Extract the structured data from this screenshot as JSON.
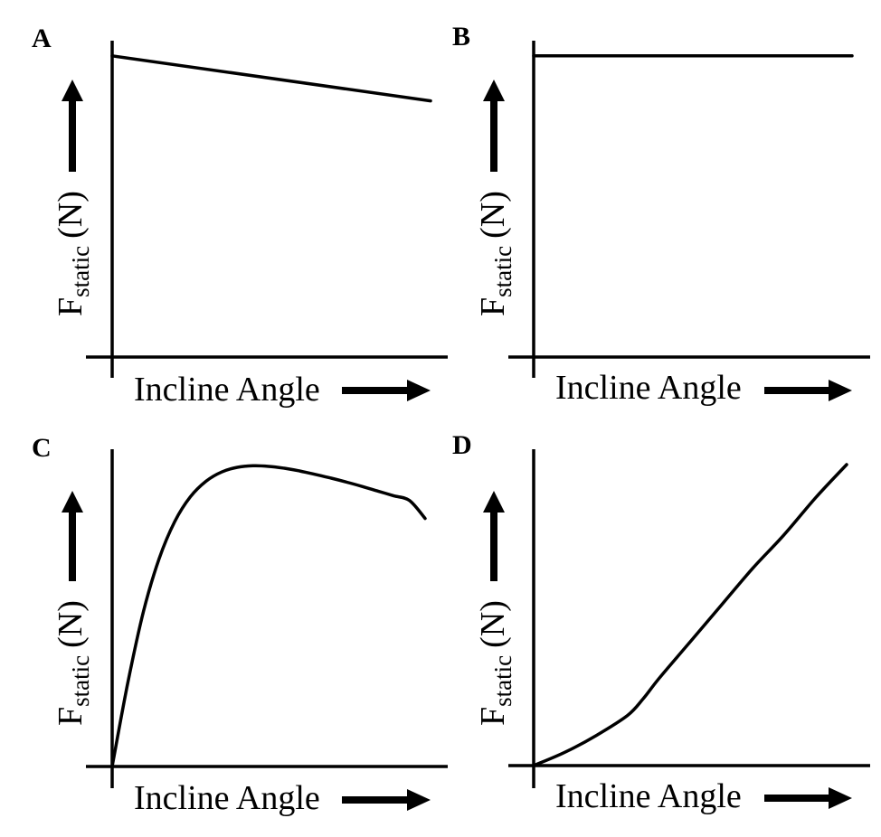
{
  "chart_data": [
    {
      "panel": "A",
      "type": "line",
      "xlabel": "Incline Angle",
      "ylabel": {
        "main": "F",
        "subscript": "static",
        "unit": "(N)"
      },
      "x": [
        0,
        1
      ],
      "y": [
        0.87,
        0.74
      ],
      "xlim": [
        0,
        1
      ],
      "ylim": [
        0,
        1
      ],
      "grid": false,
      "ticks": false
    },
    {
      "panel": "B",
      "type": "line",
      "xlabel": "Incline Angle",
      "ylabel": {
        "main": "F",
        "subscript": "static",
        "unit": "(N)"
      },
      "x": [
        0,
        1
      ],
      "y": [
        0.87,
        0.87
      ],
      "xlim": [
        0,
        1
      ],
      "ylim": [
        0,
        1
      ],
      "grid": false,
      "ticks": false
    },
    {
      "panel": "C",
      "type": "line",
      "xlabel": "Incline Angle",
      "ylabel": {
        "main": "F",
        "subscript": "static",
        "unit": "(N)"
      },
      "x": [
        0,
        0.05,
        0.1,
        0.15,
        0.2,
        0.25,
        0.3,
        0.35,
        0.4,
        0.45,
        0.5,
        0.55,
        0.6,
        0.65,
        0.7,
        0.75,
        0.8,
        0.85,
        0.9,
        0.95,
        1.0
      ],
      "y": [
        0,
        0.27,
        0.5,
        0.67,
        0.79,
        0.87,
        0.92,
        0.95,
        0.965,
        0.97,
        0.968,
        0.962,
        0.953,
        0.942,
        0.93,
        0.917,
        0.903,
        0.888,
        0.873,
        0.858,
        0.8
      ],
      "xlim": [
        0,
        1
      ],
      "ylim": [
        0,
        1
      ],
      "grid": false,
      "ticks": false
    },
    {
      "panel": "D",
      "type": "line",
      "xlabel": "Incline Angle",
      "ylabel": {
        "main": "F",
        "subscript": "static",
        "unit": "(N)"
      },
      "x": [
        0,
        0.1,
        0.2,
        0.3,
        0.35,
        0.4,
        0.5,
        0.6,
        0.7,
        0.8,
        0.9,
        1.0
      ],
      "y": [
        0,
        0.04,
        0.09,
        0.15,
        0.2,
        0.26,
        0.37,
        0.48,
        0.59,
        0.69,
        0.8,
        0.9
      ],
      "xlim": [
        0,
        1
      ],
      "ylim": [
        0,
        1
      ],
      "grid": false,
      "ticks": false
    }
  ]
}
